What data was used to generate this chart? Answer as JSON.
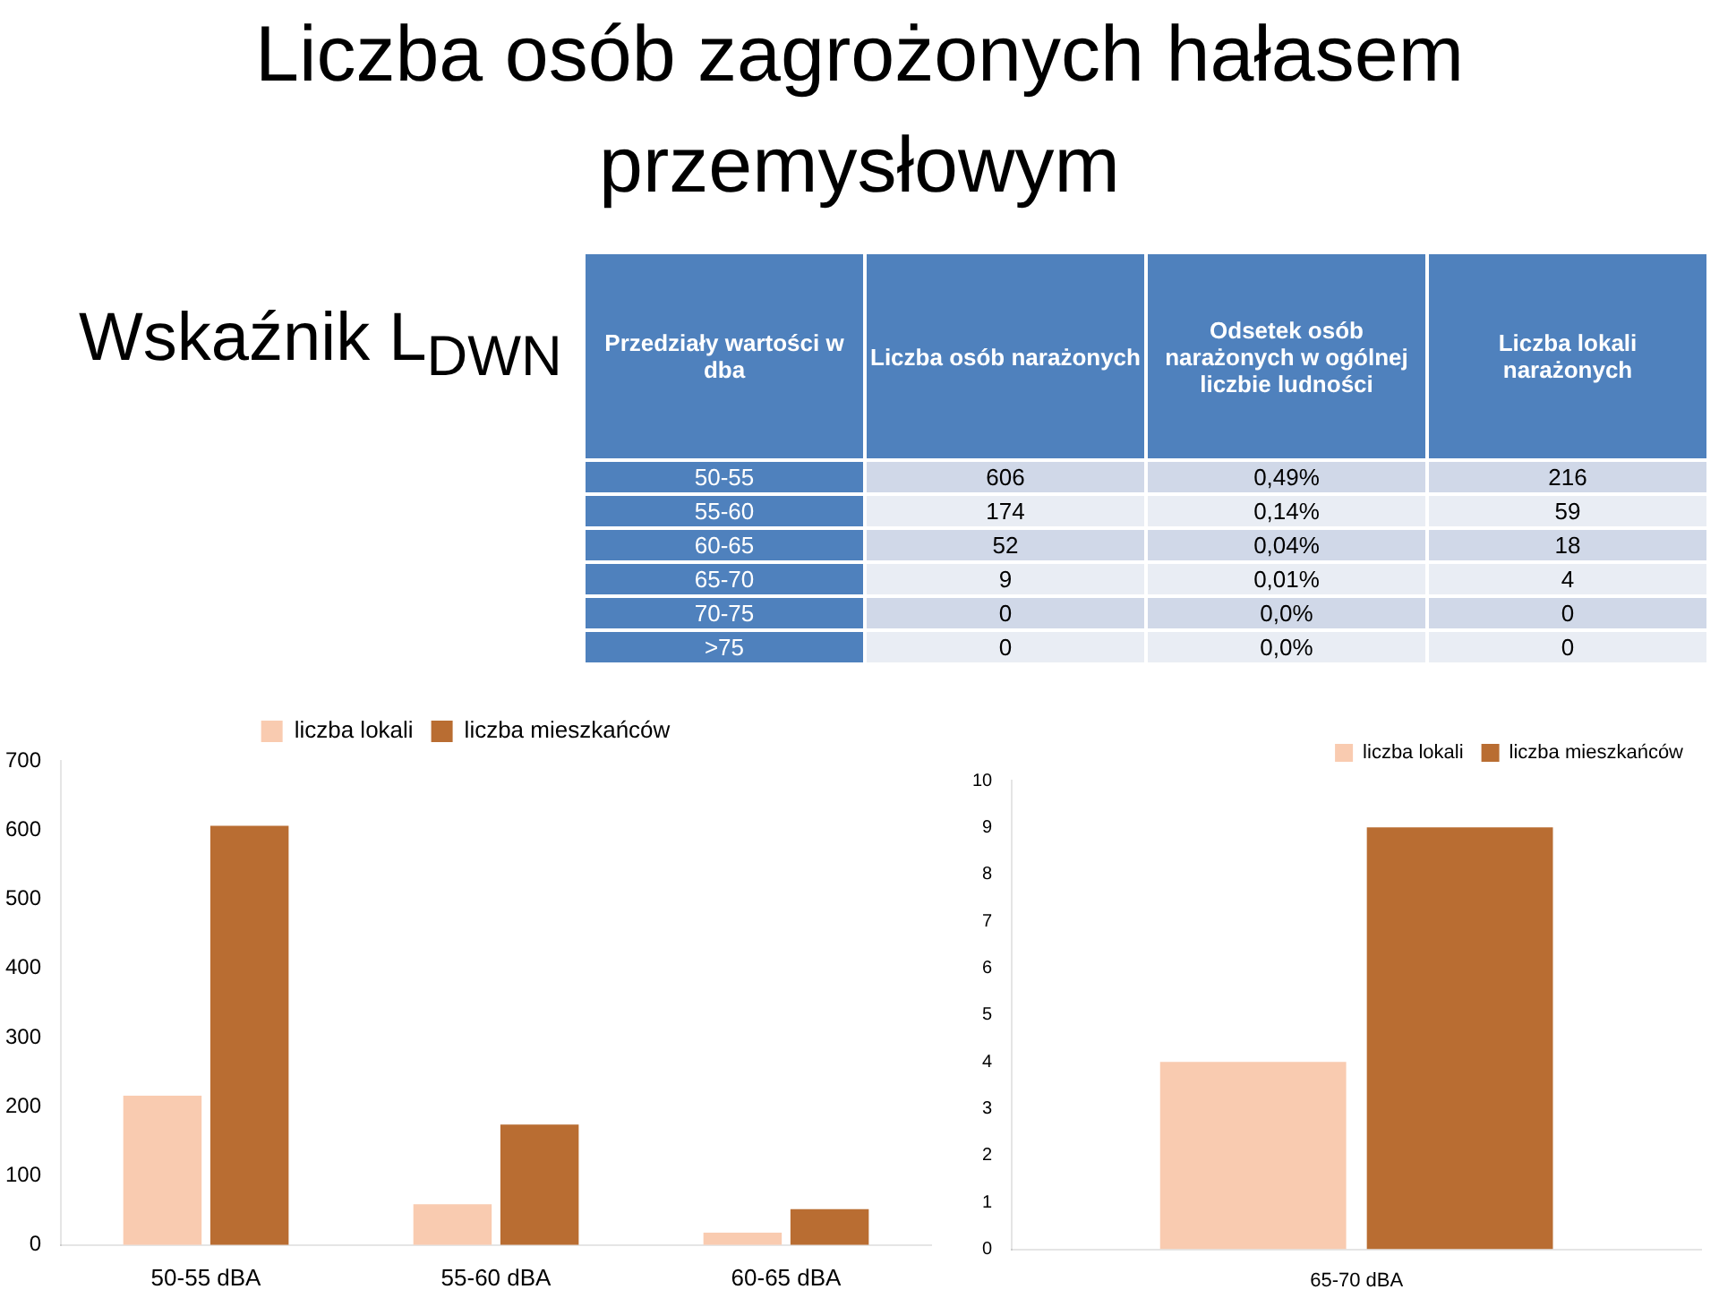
{
  "chart_data": [
    {
      "type": "other",
      "title": "Liczba osób zagrożonych hałasem przemysłowym",
      "subtitle": "Wskaźnik L$_{DWN}$",
      "annotations": [
        "Przedziały wartości w dba",
        "Liczba osób narażonych",
        "Odsetek osób narażonych w ogólnej liczbie ludności",
        "Liczba lokali narażonych",
        "50-55",
        "606",
        "0,49%",
        "216",
        "55-60",
        "174",
        "0,14%",
        "59",
        "60-65",
        "52",
        "0,04%",
        "18",
        "65-70",
        "9",
        "0,01%",
        "4",
        "70-75",
        "0",
        "0,0%",
        "0",
        ">75",
        "0",
        "0,0%",
        "0"
      ]
    },
    {
      "type": "bar",
      "categories": [
        "50-55 dBA",
        "55-60 dBA",
        "60-65 dBA"
      ],
      "series": [
        {
          "name": "liczba lokali",
          "color": "#f9cbb0",
          "values": [
            216,
            59,
            18
          ]
        },
        {
          "name": "liczba mieszkańców",
          "color": "#b96d32",
          "values": [
            606,
            174,
            52
          ]
        }
      ],
      "ylim": [
        0,
        700
      ],
      "yticks": [
        0,
        100,
        200,
        300,
        400,
        500,
        600,
        700
      ],
      "legend": "top"
    },
    {
      "type": "bar",
      "categories": [
        "65-70 dBA"
      ],
      "series": [
        {
          "name": "liczba lokali",
          "color": "#f9cbb0",
          "values": [
            4
          ]
        },
        {
          "name": "liczba mieszkańców",
          "color": "#b96d32",
          "values": [
            9
          ]
        }
      ],
      "ylim": [
        0,
        10
      ],
      "yticks": [
        0,
        1,
        2,
        3,
        4,
        5,
        6,
        7,
        8,
        9,
        10
      ],
      "legend": "top right"
    }
  ]
}
